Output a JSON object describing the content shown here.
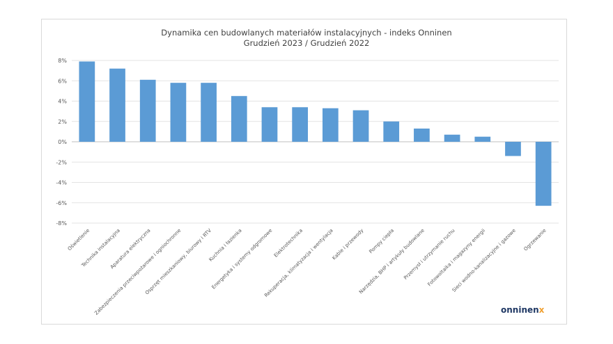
{
  "chart_data": {
    "type": "bar",
    "title_line1": "Dynamika cen budowlanych materiałów instalacyjnych - indeks Onninen",
    "title_line2": "Grudzień 2023 / Grudzień 2022",
    "xlabel": "",
    "ylabel": "",
    "ylim": [
      -8,
      8
    ],
    "y_ticks": [
      "8%",
      "6%",
      "4%",
      "2%",
      "0%",
      "-2%",
      "-4%",
      "-6%",
      "-8%"
    ],
    "y_tick_values": [
      8,
      6,
      4,
      2,
      0,
      -2,
      -4,
      -6,
      -8
    ],
    "grid": true,
    "bar_color": "#5b9bd5",
    "categories": [
      "Oświetlenie",
      "Technika instalacyjna",
      "Aparatura elektryczna",
      "Zabezpieczenia przeciwpożarowe i ogniochronne",
      "Osprzęt mieszkaniowy, biurowy i RTV",
      "Kuchnia i łazienka",
      "Energetyka i systemy odgromowe",
      "Elektrotechnika",
      "Rekuperacja, klimatyzacja i wentylacja",
      "Kable i przewody",
      "Pompy ciepła",
      "Narzędzia, BHP i artykuły budowlane",
      "Przemysł i utrzymanie ruchu",
      "Fotowoltaika i magazyny energii",
      "Sieci wodno-kanalizacyjne i gazowe",
      "Ogrzewanie"
    ],
    "values": [
      7.9,
      7.2,
      6.1,
      5.8,
      5.8,
      4.5,
      3.4,
      3.4,
      3.3,
      3.1,
      2.0,
      1.3,
      0.7,
      0.5,
      -1.4,
      -6.3
    ]
  },
  "logo": {
    "main": "onninen",
    "accent": "x",
    "colors": {
      "main": "#1f3864",
      "accent": "#f0a030"
    }
  }
}
